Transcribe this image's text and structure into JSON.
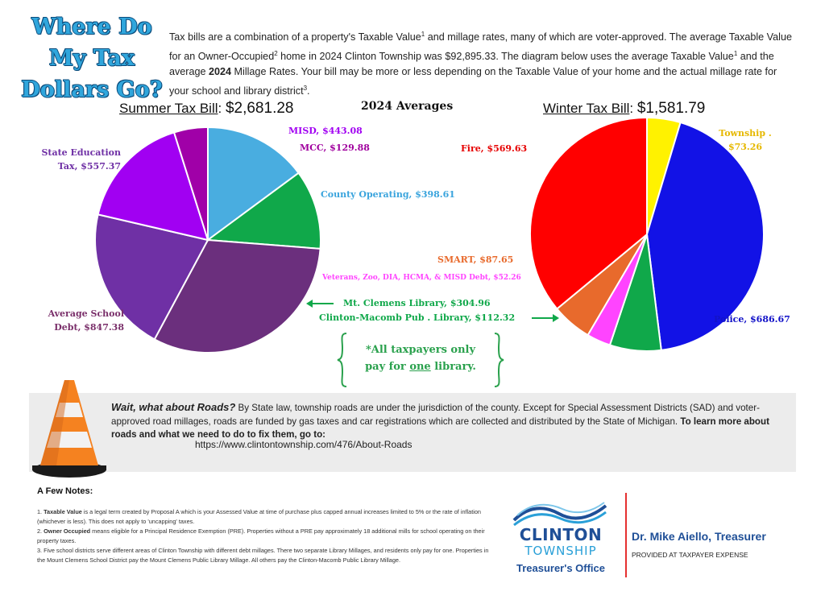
{
  "title": {
    "line1": "Where Do",
    "line2": "My Tax",
    "line3": "Dollars Go?"
  },
  "intro": {
    "p1": "Tax bills are a combination of a property's Taxable Value",
    "p2": " and millage rates, many of which are voter-approved. The average Taxable Value for an Owner-Occupied",
    "p3": " home in 2024 Clinton Township was $92,895.33. The diagram below uses the average Taxable Value",
    "p4": " and the average ",
    "p4b": "2024",
    "p5": " Millage Rates. Your bill may be more or less depending on the Taxable Value of your home and the actual millage rate for your school and library district",
    "sup1": "1",
    "sup2": "2",
    "sup3": "3",
    "end": "."
  },
  "summer": {
    "label": "Summer Tax Bill",
    "colon": ": ",
    "amount": "$2,681.28"
  },
  "averages_label": "2024 Averages",
  "winter": {
    "label": "Winter Tax Bill",
    "colon": ": ",
    "amount": "$1,581.79"
  },
  "summer_labels": {
    "misd": "MISD, $443.08",
    "mcc": "MCC, $129.88",
    "state_ed_1": "State Education",
    "state_ed_2": "Tax, $557.37",
    "county": "County Operating, $398.61",
    "school_1": "Average School",
    "school_2": "Debt, $847.38"
  },
  "winter_labels": {
    "fire": "Fire, $569.63",
    "township_1": "Township .",
    "township_2": "$73.26",
    "smart": "SMART, $87.65",
    "veterans": "Veterans, Zoo, DIA, HCMA, &  MISD Debt, $52.26",
    "police": "Police, $686.67"
  },
  "library_labels": {
    "mt_clemens": "Mt. Clemens Library, $304.96",
    "clinton_macomb": "Clinton-Macomb Pub . Library, $112.32"
  },
  "library_note": {
    "line1": "*All taxpayers only",
    "line2a": "pay for ",
    "line2b": "one",
    "line2c": " library."
  },
  "roads": {
    "heading": "Wait, what about Roads?",
    "body": " By State law, township roads are under the jurisdiction of the county.  Except for Special Assessment Districts (SAD) and voter-approved road millages, roads are funded by gas taxes and car registrations which are collected and distributed by the State of Michigan. ",
    "cta": "To learn more about roads and what we need to do to fix them, go to:",
    "url": "https://www.clintontownship.com/476/About-Roads"
  },
  "notes": {
    "title": "A Few Notes:",
    "n1_num": "1. ",
    "n1_term": "Taxable Value",
    "n1_text": " is a legal term created by Proposal A which is your Assessed Value at time of purchase plus capped annual increases limited to 5% or the rate of inflation (whichever is less). This does not apply to 'uncapping' taxes.",
    "n2_num": "2. ",
    "n2_term": "Owner Occupied",
    "n2_text": " means eligible for a Principal Residence Exemption (PRE). Properties without a PRE pay approximately 18 additional mills for school operating on their property taxes.",
    "n3": "3. Five school districts serve different areas of Clinton Township with different debt millages. There two separate Library Millages, and residents only pay for one. Properties in the Mount Clemens School District pay the Mount Clemens Public Library Millage. All others pay the Clinton-Macomb Public Library Millage."
  },
  "logo": {
    "name1": "CLINTON",
    "name2": "TOWNSHIP",
    "name3": "Treasurer's Office"
  },
  "treasurer": "Dr. Mike Aiello, Treasurer",
  "expense_note": "PROVIDED AT TAXPAYER EXPENSE",
  "chart_data": [
    {
      "type": "pie",
      "title": "Summer Tax Bill: $2,681.28",
      "categories": [
        "County Operating",
        "Mt. Clemens Library",
        "Average School Debt",
        "State Education Tax",
        "MISD",
        "MCC"
      ],
      "values": [
        398.61,
        304.96,
        847.38,
        557.37,
        443.08,
        129.88
      ],
      "colors": [
        "#49ade0",
        "#10a84a",
        "#6b2f7d",
        "#6f30a5",
        "#a100f2",
        "#a000a8"
      ]
    },
    {
      "type": "pie",
      "title": "Winter Tax Bill: $1,581.79",
      "categories": [
        "Township",
        "Police",
        "Clinton-Macomb Pub. Library",
        "Veterans, Zoo, DIA, HCMA, & MISD Debt",
        "SMART",
        "Fire"
      ],
      "values": [
        73.26,
        686.67,
        112.32,
        52.26,
        87.65,
        569.63
      ],
      "colors": [
        "#fff200",
        "#1212e6",
        "#10a84a",
        "#ff44ff",
        "#e86a2c",
        "#ff0000"
      ]
    }
  ]
}
